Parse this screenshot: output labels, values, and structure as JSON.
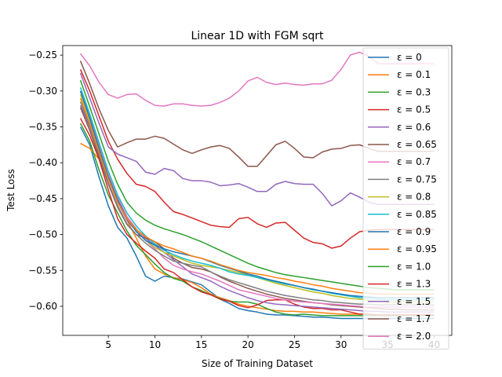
{
  "chart_data": {
    "type": "line",
    "title": "Linear 1D with FGM sqrt",
    "xlabel": "Size of Training Dataset",
    "ylabel": "Test Loss",
    "xlim": [
      0.1,
      41.9
    ],
    "ylim": [
      -0.6405,
      -0.2367
    ],
    "xticks": [
      5,
      10,
      15,
      20,
      25,
      30,
      35,
      40
    ],
    "yticks": [
      -0.6,
      -0.55,
      -0.5,
      -0.45,
      -0.4,
      -0.35,
      -0.3,
      -0.25
    ],
    "ytick_labels": [
      "−0.60",
      "−0.55",
      "−0.50",
      "−0.45",
      "−0.40",
      "−0.35",
      "−0.30",
      "−0.25"
    ],
    "legend_position": "upper-right",
    "x": [
      2,
      3,
      4,
      5,
      6,
      7,
      8,
      9,
      10,
      11,
      12,
      13,
      14,
      15,
      16,
      17,
      18,
      19,
      20,
      21,
      22,
      23,
      24,
      25,
      26,
      27,
      28,
      29,
      30,
      31,
      32,
      33,
      34,
      35,
      36,
      37,
      38,
      39,
      40
    ],
    "series": [
      {
        "name": "ε = 0",
        "color": "#1f77b4",
        "values": [
          -0.35,
          -0.375,
          -0.42,
          -0.46,
          -0.49,
          -0.505,
          -0.53,
          -0.558,
          -0.565,
          -0.558,
          -0.56,
          -0.562,
          -0.566,
          -0.57,
          -0.58,
          -0.59,
          -0.596,
          -0.603,
          -0.606,
          -0.608,
          -0.611,
          -0.612,
          -0.612,
          -0.613,
          -0.614,
          -0.615,
          -0.615,
          -0.616,
          -0.617,
          -0.617,
          -0.617,
          -0.617,
          -0.617,
          -0.617,
          -0.617,
          -0.617,
          -0.617,
          -0.617,
          -0.617
        ]
      },
      {
        "name": "ε = 0.1",
        "color": "#ff7f0e",
        "values": [
          -0.373,
          -0.38,
          -0.395,
          -0.42,
          -0.45,
          -0.48,
          -0.505,
          -0.53,
          -0.548,
          -0.555,
          -0.56,
          -0.563,
          -0.567,
          -0.574,
          -0.583,
          -0.588,
          -0.592,
          -0.597,
          -0.6,
          -0.602,
          -0.604,
          -0.606,
          -0.607,
          -0.607,
          -0.608,
          -0.608,
          -0.609,
          -0.61,
          -0.611,
          -0.611,
          -0.611,
          -0.611,
          -0.612,
          -0.612,
          -0.612,
          -0.612,
          -0.612,
          -0.612,
          -0.612
        ]
      },
      {
        "name": "ε = 0.3",
        "color": "#2ca02c",
        "values": [
          -0.345,
          -0.37,
          -0.41,
          -0.445,
          -0.47,
          -0.495,
          -0.515,
          -0.528,
          -0.541,
          -0.553,
          -0.561,
          -0.565,
          -0.573,
          -0.578,
          -0.584,
          -0.589,
          -0.593,
          -0.594,
          -0.594,
          -0.597,
          -0.603,
          -0.608,
          -0.611,
          -0.612,
          -0.611,
          -0.612,
          -0.613,
          -0.613,
          -0.613,
          -0.613,
          -0.613,
          -0.613,
          -0.613,
          -0.613,
          -0.613,
          -0.613,
          -0.613,
          -0.613,
          -0.613
        ]
      },
      {
        "name": "ε = 0.5",
        "color": "#d62728",
        "values": [
          -0.338,
          -0.362,
          -0.395,
          -0.438,
          -0.478,
          -0.5,
          -0.512,
          -0.523,
          -0.533,
          -0.548,
          -0.553,
          -0.563,
          -0.573,
          -0.58,
          -0.584,
          -0.59,
          -0.593,
          -0.599,
          -0.602,
          -0.598,
          -0.592,
          -0.591,
          -0.591,
          -0.597,
          -0.601,
          -0.603,
          -0.603,
          -0.605,
          -0.605,
          -0.608,
          -0.611,
          -0.611,
          -0.612,
          -0.612,
          -0.612,
          -0.612,
          -0.612,
          -0.612,
          -0.612
        ]
      },
      {
        "name": "ε = 0.6",
        "color": "#9467bd",
        "values": [
          -0.32,
          -0.35,
          -0.385,
          -0.42,
          -0.455,
          -0.48,
          -0.495,
          -0.505,
          -0.515,
          -0.525,
          -0.535,
          -0.545,
          -0.555,
          -0.56,
          -0.565,
          -0.572,
          -0.578,
          -0.583,
          -0.588,
          -0.592,
          -0.595,
          -0.597,
          -0.598,
          -0.599,
          -0.6,
          -0.601,
          -0.602,
          -0.603,
          -0.604,
          -0.605,
          -0.606,
          -0.607,
          -0.607,
          -0.608,
          -0.608,
          -0.608,
          -0.608,
          -0.608,
          -0.608
        ]
      },
      {
        "name": "ε = 0.65",
        "color": "#8c564b",
        "values": [
          -0.323,
          -0.355,
          -0.392,
          -0.43,
          -0.462,
          -0.486,
          -0.5,
          -0.505,
          -0.51,
          -0.52,
          -0.533,
          -0.54,
          -0.546,
          -0.548,
          -0.552,
          -0.559,
          -0.565,
          -0.57,
          -0.575,
          -0.579,
          -0.583,
          -0.586,
          -0.589,
          -0.591,
          -0.593,
          -0.595,
          -0.596,
          -0.598,
          -0.599,
          -0.6,
          -0.601,
          -0.602,
          -0.603,
          -0.604,
          -0.604,
          -0.605,
          -0.605,
          -0.605,
          -0.605
        ]
      },
      {
        "name": "ε = 0.7",
        "color": "#e377c2",
        "values": [
          -0.3,
          -0.335,
          -0.375,
          -0.415,
          -0.448,
          -0.475,
          -0.492,
          -0.508,
          -0.52,
          -0.533,
          -0.543,
          -0.548,
          -0.552,
          -0.555,
          -0.56,
          -0.565,
          -0.571,
          -0.577,
          -0.58,
          -0.583,
          -0.586,
          -0.589,
          -0.591,
          -0.593,
          -0.594,
          -0.595,
          -0.596,
          -0.597,
          -0.598,
          -0.599,
          -0.6,
          -0.601,
          -0.601,
          -0.601,
          -0.601,
          -0.601,
          -0.601,
          -0.601,
          -0.601
        ]
      },
      {
        "name": "ε = 0.75",
        "color": "#7f7f7f",
        "values": [
          -0.315,
          -0.348,
          -0.388,
          -0.428,
          -0.46,
          -0.485,
          -0.5,
          -0.512,
          -0.522,
          -0.53,
          -0.537,
          -0.54,
          -0.543,
          -0.545,
          -0.552,
          -0.558,
          -0.563,
          -0.567,
          -0.571,
          -0.575,
          -0.579,
          -0.582,
          -0.585,
          -0.587,
          -0.589,
          -0.591,
          -0.592,
          -0.594,
          -0.595,
          -0.596,
          -0.597,
          -0.597,
          -0.598,
          -0.598,
          -0.598,
          -0.598,
          -0.598,
          -0.598,
          -0.598
        ]
      },
      {
        "name": "ε = 0.8",
        "color": "#bcbd22",
        "values": [
          -0.305,
          -0.34,
          -0.38,
          -0.42,
          -0.452,
          -0.478,
          -0.495,
          -0.508,
          -0.518,
          -0.525,
          -0.53,
          -0.535,
          -0.54,
          -0.543,
          -0.545,
          -0.547,
          -0.55,
          -0.553,
          -0.556,
          -0.56,
          -0.564,
          -0.568,
          -0.571,
          -0.574,
          -0.577,
          -0.58,
          -0.582,
          -0.585,
          -0.587,
          -0.589,
          -0.59,
          -0.592,
          -0.593,
          -0.594,
          -0.594,
          -0.594,
          -0.594,
          -0.594,
          -0.594
        ]
      },
      {
        "name": "ε = 0.85",
        "color": "#17becf",
        "values": [
          -0.295,
          -0.332,
          -0.372,
          -0.412,
          -0.445,
          -0.47,
          -0.488,
          -0.502,
          -0.513,
          -0.522,
          -0.528,
          -0.533,
          -0.537,
          -0.54,
          -0.543,
          -0.547,
          -0.552,
          -0.555,
          -0.557,
          -0.56,
          -0.563,
          -0.566,
          -0.569,
          -0.571,
          -0.574,
          -0.577,
          -0.579,
          -0.582,
          -0.584,
          -0.586,
          -0.588,
          -0.589,
          -0.59,
          -0.591,
          -0.591,
          -0.591,
          -0.591,
          -0.591,
          -0.591
        ]
      },
      {
        "name": "ε = 0.9",
        "color": "#1f77b4",
        "values": [
          -0.3,
          -0.338,
          -0.38,
          -0.42,
          -0.452,
          -0.478,
          -0.496,
          -0.508,
          -0.515,
          -0.52,
          -0.524,
          -0.527,
          -0.53,
          -0.533,
          -0.538,
          -0.543,
          -0.547,
          -0.551,
          -0.555,
          -0.558,
          -0.562,
          -0.565,
          -0.568,
          -0.571,
          -0.574,
          -0.576,
          -0.579,
          -0.581,
          -0.583,
          -0.585,
          -0.586,
          -0.587,
          -0.588,
          -0.588,
          -0.588,
          -0.588,
          -0.588,
          -0.588,
          -0.588
        ]
      },
      {
        "name": "ε = 0.95",
        "color": "#ff7f0e",
        "values": [
          -0.31,
          -0.345,
          -0.385,
          -0.423,
          -0.455,
          -0.478,
          -0.493,
          -0.503,
          -0.51,
          -0.516,
          -0.52,
          -0.525,
          -0.53,
          -0.533,
          -0.537,
          -0.542,
          -0.546,
          -0.55,
          -0.553,
          -0.555,
          -0.557,
          -0.56,
          -0.562,
          -0.565,
          -0.567,
          -0.57,
          -0.572,
          -0.575,
          -0.577,
          -0.579,
          -0.581,
          -0.582,
          -0.583,
          -0.583,
          -0.583,
          -0.583,
          -0.583,
          -0.583,
          -0.583
        ]
      },
      {
        "name": "ε = 1.0",
        "color": "#2ca02c",
        "values": [
          -0.285,
          -0.322,
          -0.36,
          -0.398,
          -0.43,
          -0.455,
          -0.47,
          -0.48,
          -0.487,
          -0.492,
          -0.496,
          -0.5,
          -0.505,
          -0.51,
          -0.516,
          -0.522,
          -0.528,
          -0.534,
          -0.54,
          -0.545,
          -0.549,
          -0.553,
          -0.556,
          -0.558,
          -0.56,
          -0.562,
          -0.564,
          -0.566,
          -0.568,
          -0.57,
          -0.572,
          -0.574,
          -0.575,
          -0.576,
          -0.577,
          -0.577,
          -0.577,
          -0.577,
          -0.577
        ]
      },
      {
        "name": "ε = 1.3",
        "color": "#d62728",
        "values": [
          -0.27,
          -0.3,
          -0.335,
          -0.37,
          -0.395,
          -0.415,
          -0.43,
          -0.433,
          -0.44,
          -0.455,
          -0.468,
          -0.472,
          -0.477,
          -0.482,
          -0.487,
          -0.489,
          -0.49,
          -0.478,
          -0.476,
          -0.485,
          -0.49,
          -0.484,
          -0.483,
          -0.494,
          -0.505,
          -0.511,
          -0.513,
          -0.519,
          -0.516,
          -0.505,
          -0.496,
          -0.494,
          -0.493,
          -0.493,
          -0.493,
          -0.493,
          -0.493,
          -0.493,
          -0.493
        ]
      },
      {
        "name": "ε = 1.5",
        "color": "#9467bd",
        "values": [
          -0.275,
          -0.31,
          -0.345,
          -0.378,
          -0.388,
          -0.393,
          -0.398,
          -0.413,
          -0.416,
          -0.408,
          -0.411,
          -0.422,
          -0.425,
          -0.425,
          -0.427,
          -0.432,
          -0.431,
          -0.429,
          -0.434,
          -0.44,
          -0.44,
          -0.43,
          -0.426,
          -0.429,
          -0.43,
          -0.43,
          -0.443,
          -0.46,
          -0.453,
          -0.442,
          -0.448,
          -0.455,
          -0.458,
          -0.458,
          -0.458,
          -0.458,
          -0.458,
          -0.458,
          -0.458
        ]
      },
      {
        "name": "ε = 1.7",
        "color": "#8c564b",
        "values": [
          -0.258,
          -0.29,
          -0.325,
          -0.355,
          -0.378,
          -0.372,
          -0.367,
          -0.367,
          -0.363,
          -0.366,
          -0.374,
          -0.382,
          -0.387,
          -0.382,
          -0.378,
          -0.376,
          -0.38,
          -0.392,
          -0.405,
          -0.405,
          -0.39,
          -0.375,
          -0.37,
          -0.38,
          -0.392,
          -0.393,
          -0.385,
          -0.381,
          -0.38,
          -0.376,
          -0.375,
          -0.38,
          -0.384,
          -0.384,
          -0.384,
          -0.384,
          -0.384,
          -0.384,
          -0.384
        ]
      },
      {
        "name": "ε = 2.0",
        "color": "#e377c2",
        "values": [
          -0.248,
          -0.265,
          -0.288,
          -0.305,
          -0.31,
          -0.305,
          -0.304,
          -0.313,
          -0.32,
          -0.321,
          -0.318,
          -0.318,
          -0.32,
          -0.321,
          -0.32,
          -0.316,
          -0.31,
          -0.3,
          -0.286,
          -0.281,
          -0.288,
          -0.291,
          -0.289,
          -0.291,
          -0.292,
          -0.29,
          -0.29,
          -0.285,
          -0.27,
          -0.25,
          -0.246,
          -0.252,
          -0.262,
          -0.262,
          -0.262,
          -0.262,
          -0.262,
          -0.262,
          -0.262
        ]
      }
    ]
  }
}
